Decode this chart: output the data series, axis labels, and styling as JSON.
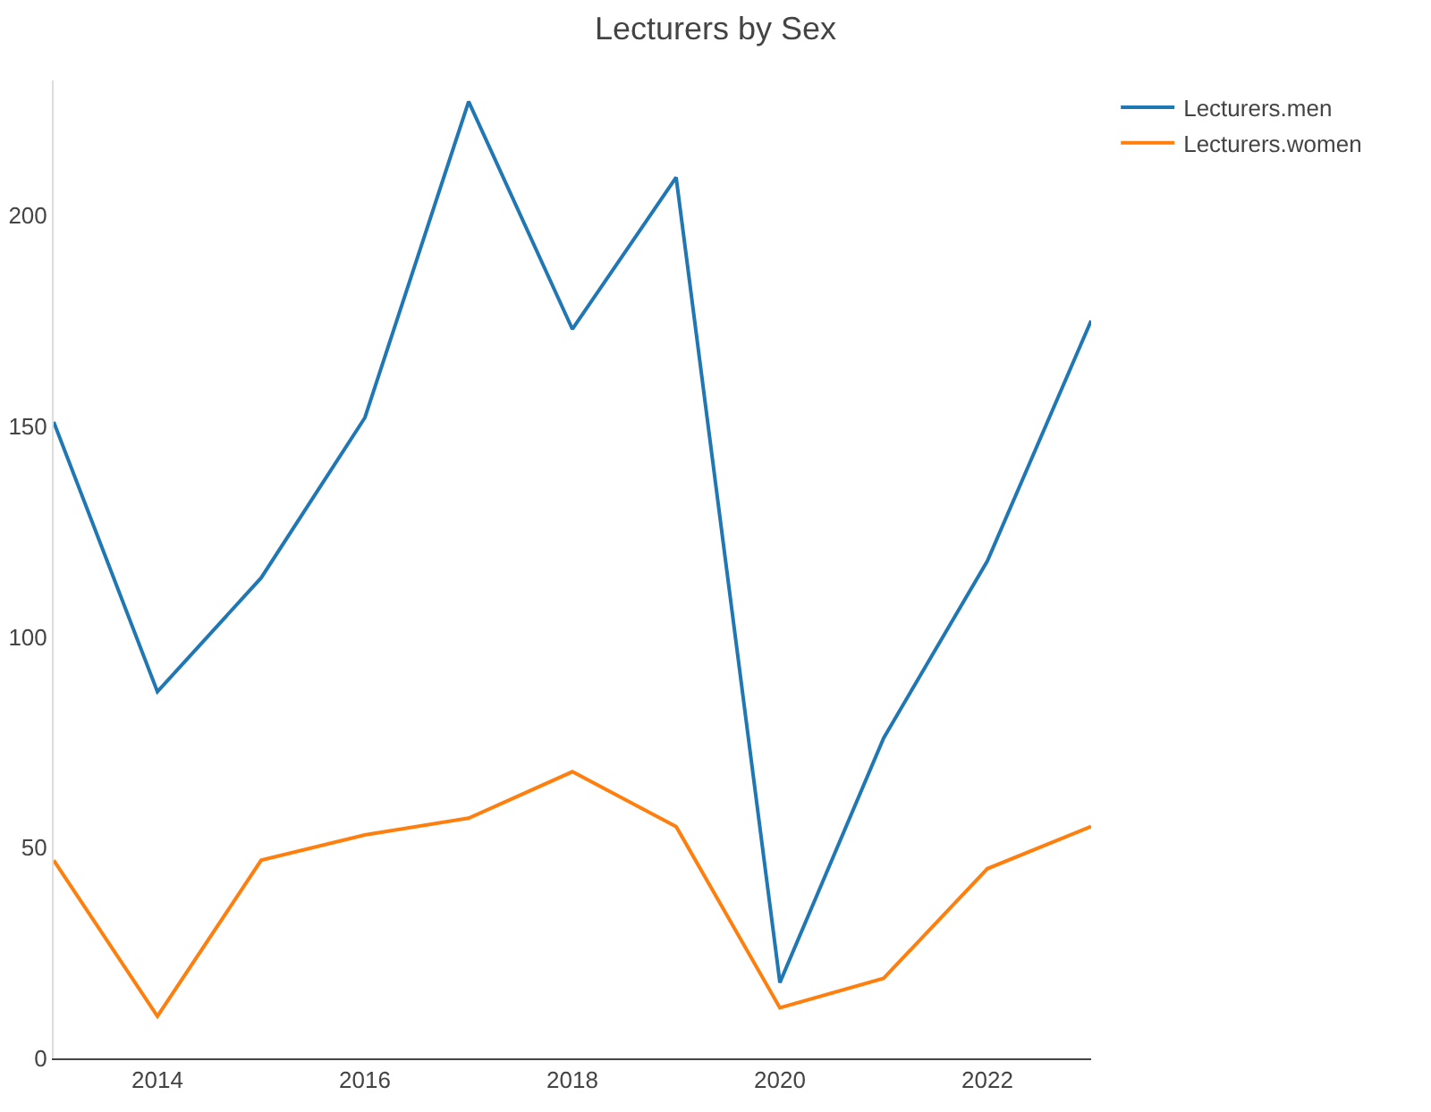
{
  "chart_data": {
    "type": "line",
    "title": "Lecturers by Sex",
    "x": [
      2013,
      2014,
      2015,
      2016,
      2017,
      2018,
      2019,
      2020,
      2021,
      2022,
      2023
    ],
    "series": [
      {
        "name": "Lecturers.men",
        "color": "#1f77b4",
        "values": [
          151,
          87,
          114,
          152,
          227,
          173,
          209,
          18,
          76,
          118,
          175
        ]
      },
      {
        "name": "Lecturers.women",
        "color": "#ff7f0e",
        "values": [
          47,
          10,
          47,
          53,
          57,
          68,
          55,
          12,
          19,
          45,
          55
        ]
      }
    ],
    "xlim": [
      2013,
      2023
    ],
    "xticks": [
      2014,
      2016,
      2018,
      2020,
      2022
    ],
    "ylim": [
      0,
      232
    ],
    "yticks": [
      0,
      50,
      100,
      150,
      200
    ],
    "grid": false,
    "legend": "top right",
    "marker": "none",
    "line_style": "solid"
  }
}
